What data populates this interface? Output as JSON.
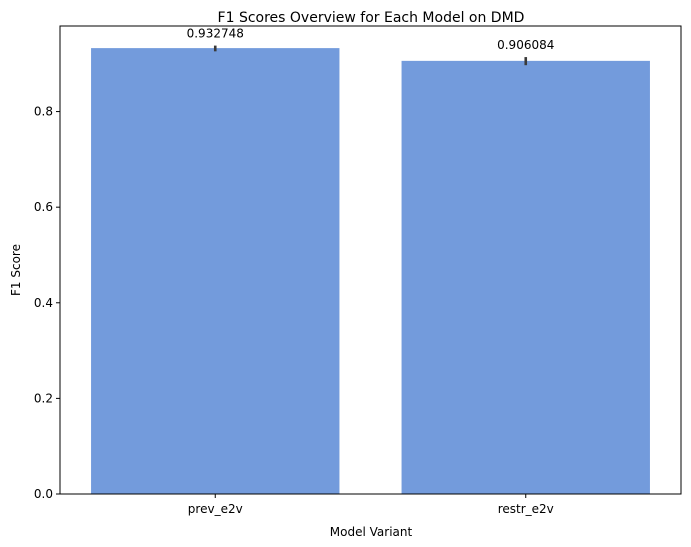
{
  "chart_data": {
    "type": "bar",
    "title": "F1 Scores Overview for Each Model on DMD",
    "xlabel": "Model Variant",
    "ylabel": "F1 Score",
    "categories": [
      "prev_e2v",
      "restr_e2v"
    ],
    "values": [
      0.932748,
      0.906084
    ],
    "value_labels": [
      "0.932748",
      "0.906084"
    ],
    "error_low": [
      0.926,
      0.897
    ],
    "error_high": [
      0.938,
      0.914
    ],
    "ylim": [
      0,
      0.979
    ],
    "yticks": [
      0.0,
      0.2,
      0.4,
      0.6,
      0.8
    ],
    "ytick_labels": [
      "0.0",
      "0.2",
      "0.4",
      "0.6",
      "0.8"
    ],
    "grid": false,
    "colors": {
      "bar": "#739bdc",
      "errbar": "#3a3a3a"
    }
  }
}
